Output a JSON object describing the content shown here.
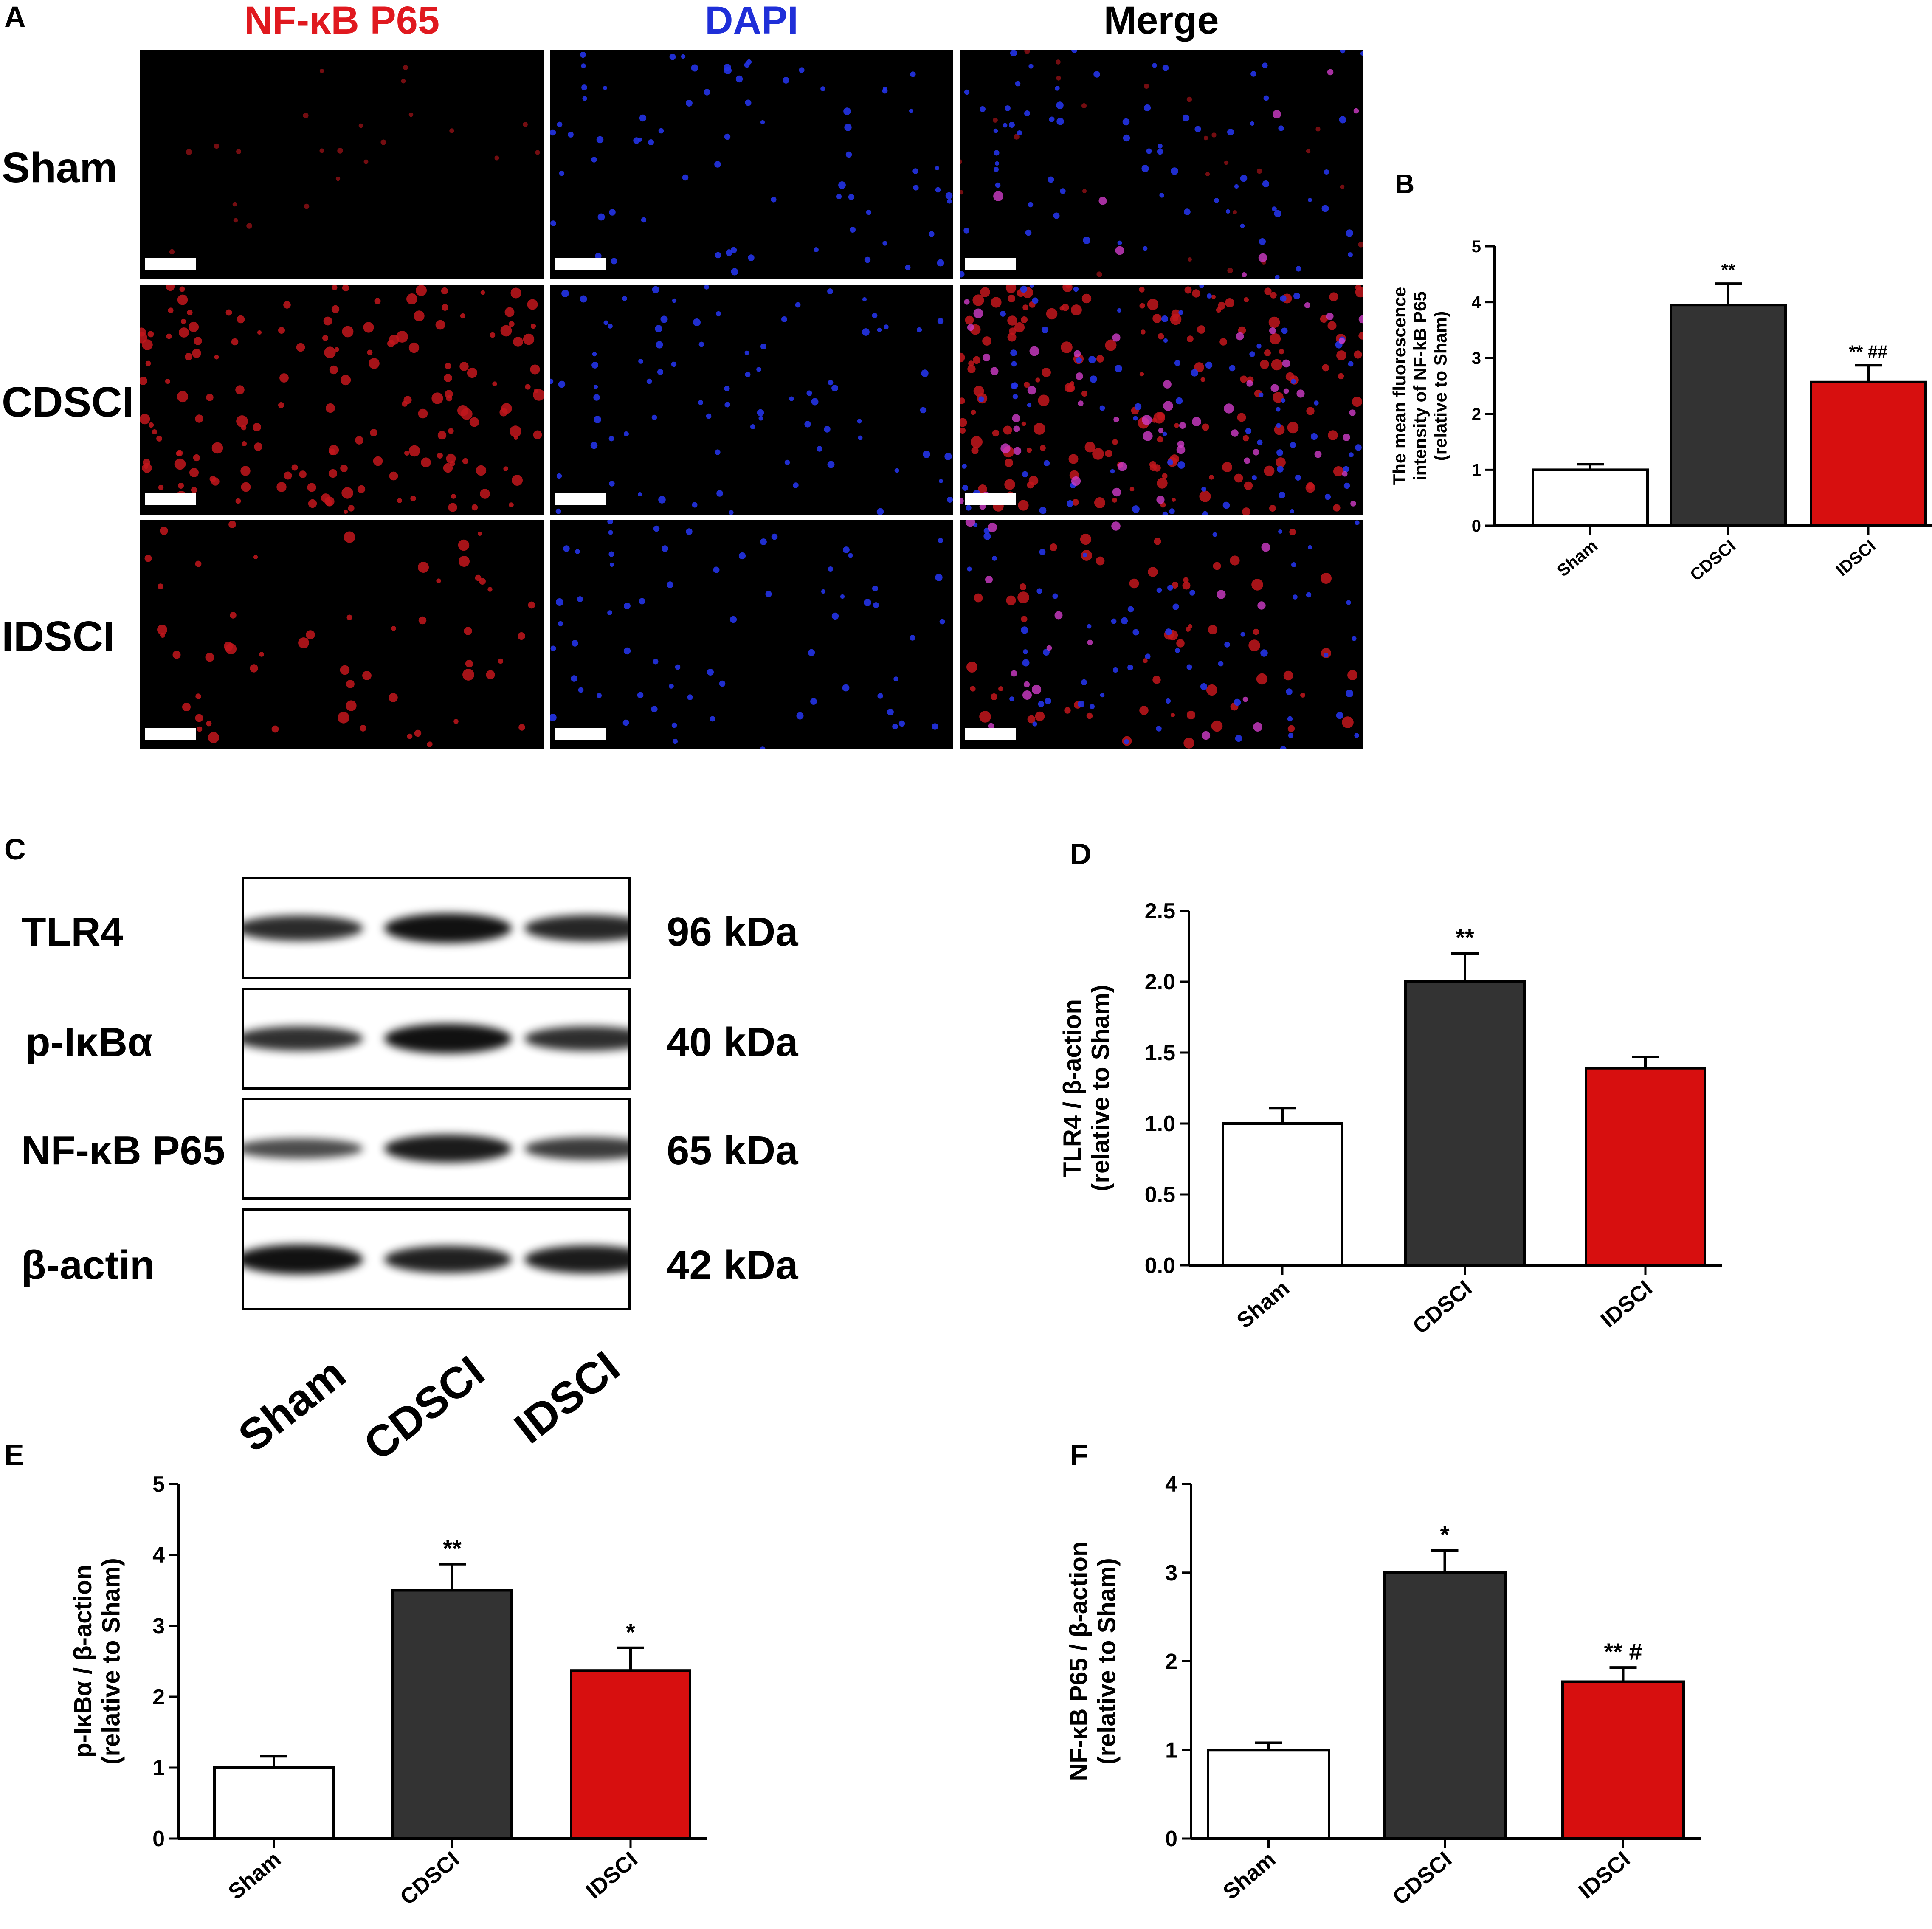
{
  "panelA": {
    "letter": "A",
    "columns": [
      "NF-κB P65",
      "DAPI",
      "Merge"
    ],
    "rows": [
      "Sham",
      "CDSCI",
      "IDSCI"
    ],
    "column_colors": [
      "#e0191f",
      "#1f2fd8",
      "#000000"
    ]
  },
  "panelC": {
    "letter": "C",
    "proteins": [
      "TLR4",
      "p-IκBα",
      "NF-κB P65",
      "β-actin"
    ],
    "weights": [
      "96 kDa",
      "40 kDa",
      "65 kDa",
      "42 kDa"
    ],
    "lanes": [
      "Sham",
      "CDSCI",
      "IDSCI"
    ]
  },
  "colors": {
    "sham": "#ffffff",
    "cdsci": "#333333",
    "idsci": "#d70f0f"
  },
  "charts": {
    "B": {
      "letter": "B",
      "ylabel_lines": [
        "The mean fluorescence",
        "intensity of NF-kB P65",
        "(relative to Sham)"
      ],
      "chart_data": {
        "type": "bar",
        "categories": [
          "Sham",
          "CDSCI",
          "IDSCI"
        ],
        "values": [
          1.0,
          3.95,
          2.57
        ],
        "errors": [
          0.1,
          0.38,
          0.3
        ],
        "annotations": [
          "",
          "**",
          "** ##"
        ],
        "ylim": [
          0,
          5
        ],
        "yticks": [
          "0",
          "1",
          "2",
          "3",
          "4",
          "5"
        ]
      }
    },
    "D": {
      "letter": "D",
      "ylabel_lines": [
        "TLR4 / β-action",
        "(relative to Sham)"
      ],
      "chart_data": {
        "type": "bar",
        "categories": [
          "Sham",
          "CDSCI",
          "IDSCI"
        ],
        "values": [
          1.0,
          2.0,
          1.39
        ],
        "errors": [
          0.11,
          0.2,
          0.08
        ],
        "annotations": [
          "",
          "**",
          ""
        ],
        "ylim": [
          0,
          2.5
        ],
        "yticks": [
          "0.0",
          "0.5",
          "1.0",
          "1.5",
          "2.0",
          "2.5"
        ]
      }
    },
    "E": {
      "letter": "E",
      "ylabel_lines": [
        "p-IκBα / β-action",
        "(relative to Sham)"
      ],
      "chart_data": {
        "type": "bar",
        "categories": [
          "Sham",
          "CDSCI",
          "IDSCI"
        ],
        "values": [
          1.0,
          3.5,
          2.37
        ],
        "errors": [
          0.16,
          0.37,
          0.32
        ],
        "annotations": [
          "",
          "**",
          "*"
        ],
        "ylim": [
          0,
          5
        ],
        "yticks": [
          "0",
          "1",
          "2",
          "3",
          "4",
          "5"
        ]
      }
    },
    "F": {
      "letter": "F",
      "ylabel_lines": [
        "NF-κB P65 / β-action",
        "(relative to Sham)"
      ],
      "chart_data": {
        "type": "bar",
        "categories": [
          "Sham",
          "CDSCI",
          "IDSCI"
        ],
        "values": [
          1.0,
          3.0,
          1.77
        ],
        "errors": [
          0.08,
          0.25,
          0.16
        ],
        "annotations": [
          "",
          "*",
          "** #"
        ],
        "ylim": [
          0,
          4
        ],
        "yticks": [
          "0",
          "1",
          "2",
          "3",
          "4"
        ]
      }
    }
  }
}
